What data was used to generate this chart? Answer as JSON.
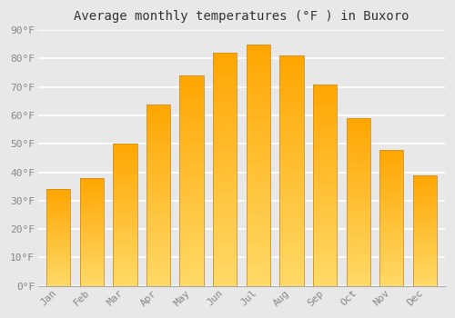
{
  "title": "Average monthly temperatures (°F ) in Buxoro",
  "months": [
    "Jan",
    "Feb",
    "Mar",
    "Apr",
    "May",
    "Jun",
    "Jul",
    "Aug",
    "Sep",
    "Oct",
    "Nov",
    "Dec"
  ],
  "values": [
    34,
    38,
    50,
    64,
    74,
    82,
    85,
    81,
    71,
    59,
    48,
    39
  ],
  "bar_color_top": "#FFA500",
  "bar_color_bottom": "#FFD966",
  "bar_edge_color": "#C8922A",
  "ylim": [
    0,
    90
  ],
  "yticks": [
    0,
    10,
    20,
    30,
    40,
    50,
    60,
    70,
    80,
    90
  ],
  "ytick_labels": [
    "0°F",
    "10°F",
    "20°F",
    "30°F",
    "40°F",
    "50°F",
    "60°F",
    "70°F",
    "80°F",
    "90°F"
  ],
  "background_color": "#e8e8e8",
  "plot_bg_color": "#e8e8e8",
  "grid_color": "#ffffff",
  "title_fontsize": 10,
  "tick_fontsize": 8,
  "font_family": "monospace"
}
